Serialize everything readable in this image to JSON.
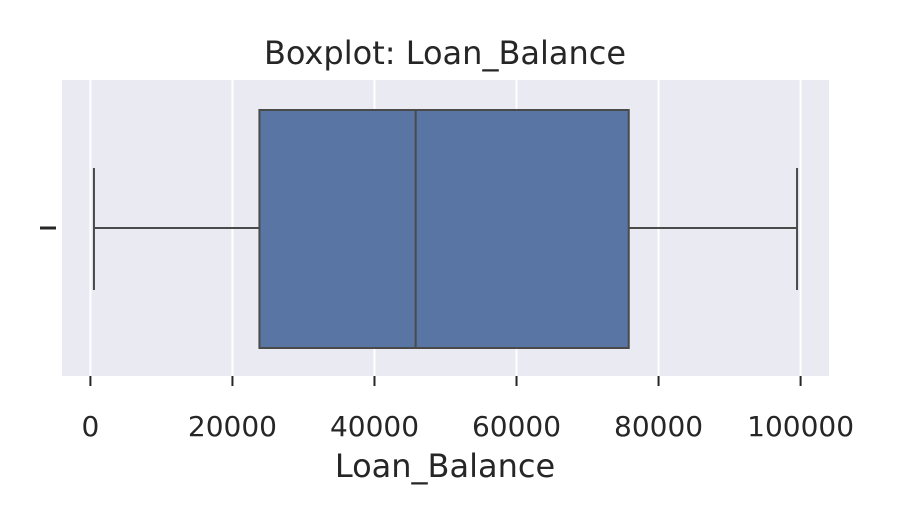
{
  "chart_data": {
    "type": "boxplot",
    "title": "Boxplot: Loan_Balance",
    "xlabel": "Loan_Balance",
    "ylabel": "",
    "orientation": "horizontal",
    "xlim": [
      -4000,
      104000
    ],
    "xticks": [
      0,
      20000,
      40000,
      60000,
      80000,
      100000
    ],
    "xtick_labels": [
      "0",
      "20000",
      "40000",
      "60000",
      "80000",
      "100000"
    ],
    "series": [
      {
        "whisker_low": 500,
        "q1": 23800,
        "median": 45800,
        "q3": 75800,
        "whisker_high": 99500
      }
    ],
    "grid": true,
    "colors": {
      "plot_background": "#eaeaf2",
      "grid": "#ffffff",
      "box_fill": "#5975a4",
      "line": "#4a4a4a",
      "text": "#262626"
    }
  }
}
